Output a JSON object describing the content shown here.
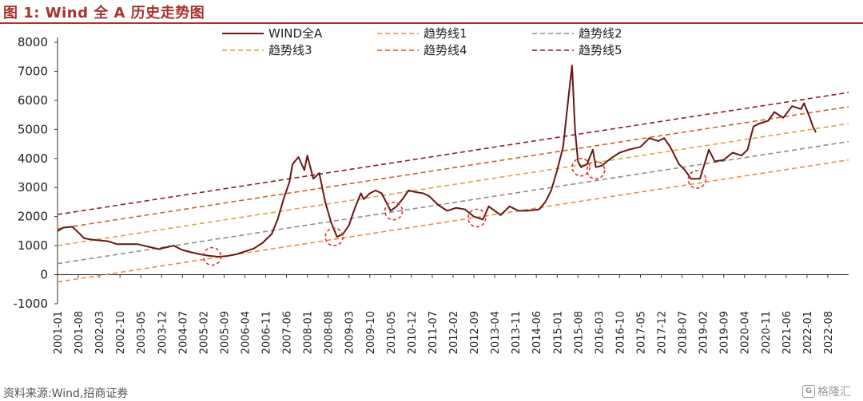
{
  "figure": {
    "title": "图 1:  Wind 全 A 历史走势图",
    "source": "资料来源:Wind,招商证券",
    "logo_text": "格隆汇",
    "logo_mark": "G"
  },
  "colors": {
    "title": "#a8322c",
    "index": "#6b1414",
    "t1": "#f08a3c",
    "t2": "#8c8c8c",
    "t3": "#d9a441",
    "t4": "#c8651e",
    "t5": "#8b1a2a",
    "circle": "#e03030"
  },
  "chart_data": {
    "type": "line",
    "ylim": [
      -1000,
      8000
    ],
    "yticks": [
      -1000,
      0,
      1000,
      2000,
      3000,
      4000,
      5000,
      6000,
      7000,
      8000
    ],
    "xlim": [
      "2001-01",
      "2023-03"
    ],
    "xticks": [
      "2001-01",
      "2001-08",
      "2002-03",
      "2002-10",
      "2003-05",
      "2003-12",
      "2004-07",
      "2005-02",
      "2005-09",
      "2006-04",
      "2006-11",
      "2007-06",
      "2008-01",
      "2008-08",
      "2009-03",
      "2009-10",
      "2010-05",
      "2010-12",
      "2011-07",
      "2012-02",
      "2012-09",
      "2013-04",
      "2013-11",
      "2014-06",
      "2015-01",
      "2015-08",
      "2016-03",
      "2016-10",
      "2017-05",
      "2017-12",
      "2018-07",
      "2019-02",
      "2019-09",
      "2020-04",
      "2020-11",
      "2021-06",
      "2022-01",
      "2022-08"
    ],
    "legend": {
      "placement": "top",
      "entries": [
        "WIND全A",
        "趋势线1",
        "趋势线2",
        "趋势线3",
        "趋势线4",
        "趋势线5"
      ]
    },
    "series": [
      {
        "name": "WIND全A",
        "style": "solid",
        "x": [
          "2001-01",
          "2001-03",
          "2001-06",
          "2001-08",
          "2001-10",
          "2002-01",
          "2002-06",
          "2002-09",
          "2002-12",
          "2003-04",
          "2003-08",
          "2003-11",
          "2004-04",
          "2004-07",
          "2004-10",
          "2005-01",
          "2005-04",
          "2005-07",
          "2005-10",
          "2006-01",
          "2006-04",
          "2006-07",
          "2006-10",
          "2007-01",
          "2007-03",
          "2007-05",
          "2007-07",
          "2007-08",
          "2007-10",
          "2007-12",
          "2008-01",
          "2008-03",
          "2008-05",
          "2008-07",
          "2008-09",
          "2008-11",
          "2009-01",
          "2009-03",
          "2009-05",
          "2009-07",
          "2009-08",
          "2009-10",
          "2009-12",
          "2010-02",
          "2010-05",
          "2010-07",
          "2010-09",
          "2010-11",
          "2011-01",
          "2011-04",
          "2011-06",
          "2011-09",
          "2011-12",
          "2012-03",
          "2012-06",
          "2012-09",
          "2012-12",
          "2013-02",
          "2013-06",
          "2013-09",
          "2013-12",
          "2014-03",
          "2014-07",
          "2014-09",
          "2014-11",
          "2015-01",
          "2015-03",
          "2015-05",
          "2015-06",
          "2015-07",
          "2015-08",
          "2015-09",
          "2015-11",
          "2016-01",
          "2016-02",
          "2016-04",
          "2016-07",
          "2016-10",
          "2017-01",
          "2017-05",
          "2017-08",
          "2017-11",
          "2018-01",
          "2018-03",
          "2018-06",
          "2018-08",
          "2018-10",
          "2019-01",
          "2019-04",
          "2019-06",
          "2019-09",
          "2019-12",
          "2020-03",
          "2020-05",
          "2020-07",
          "2020-09",
          "2020-12",
          "2021-02",
          "2021-05",
          "2021-08",
          "2021-11",
          "2021-12",
          "2022-02",
          "2022-03",
          "2022-04"
        ],
        "y": [
          1500,
          1620,
          1650,
          1450,
          1250,
          1200,
          1150,
          1050,
          1050,
          1050,
          950,
          880,
          1000,
          850,
          770,
          700,
          650,
          620,
          640,
          700,
          800,
          900,
          1100,
          1400,
          1900,
          2600,
          3200,
          3800,
          4050,
          3600,
          4100,
          3300,
          3500,
          2500,
          1800,
          1300,
          1400,
          1700,
          2300,
          2800,
          2600,
          2800,
          2900,
          2800,
          2200,
          2350,
          2600,
          2900,
          2850,
          2800,
          2700,
          2400,
          2200,
          2300,
          2250,
          2000,
          1900,
          2350,
          2050,
          2350,
          2200,
          2200,
          2250,
          2500,
          2900,
          3600,
          4400,
          6300,
          7200,
          5000,
          3900,
          3700,
          3800,
          4300,
          3700,
          3750,
          4000,
          4200,
          4300,
          4400,
          4700,
          4600,
          4700,
          4400,
          3800,
          3600,
          3300,
          3300,
          4300,
          3900,
          3950,
          4200,
          4100,
          4300,
          5100,
          5200,
          5300,
          5600,
          5400,
          5800,
          5700,
          5900,
          5400,
          5100,
          4900
        ]
      },
      {
        "name": "趋势线1",
        "style": "dashed",
        "x": [
          "2001-01",
          "2023-03"
        ],
        "y": [
          -250,
          3950
        ]
      },
      {
        "name": "趋势线2",
        "style": "dashed",
        "x": [
          "2001-01",
          "2023-03"
        ],
        "y": [
          380,
          4580
        ]
      },
      {
        "name": "趋势线3",
        "style": "dashed",
        "x": [
          "2001-01",
          "2023-03"
        ],
        "y": [
          1000,
          5200
        ]
      },
      {
        "name": "趋势线4",
        "style": "dashed",
        "x": [
          "2001-01",
          "2023-03"
        ],
        "y": [
          1580,
          5780
        ]
      },
      {
        "name": "趋势线5",
        "style": "dashed",
        "x": [
          "2001-01",
          "2023-03"
        ],
        "y": [
          2070,
          6270
        ]
      }
    ],
    "annotations": [
      {
        "type": "circle",
        "x": "2005-05",
        "y": 630
      },
      {
        "type": "circle",
        "x": "2008-10",
        "y": 1300
      },
      {
        "type": "circle",
        "x": "2010-06",
        "y": 2190
      },
      {
        "type": "circle",
        "x": "2012-10",
        "y": 1950
      },
      {
        "type": "circle",
        "x": "2015-09",
        "y": 3700
      },
      {
        "type": "circle",
        "x": "2016-02",
        "y": 3600
      },
      {
        "type": "circle",
        "x": "2018-12",
        "y": 3280
      }
    ]
  }
}
